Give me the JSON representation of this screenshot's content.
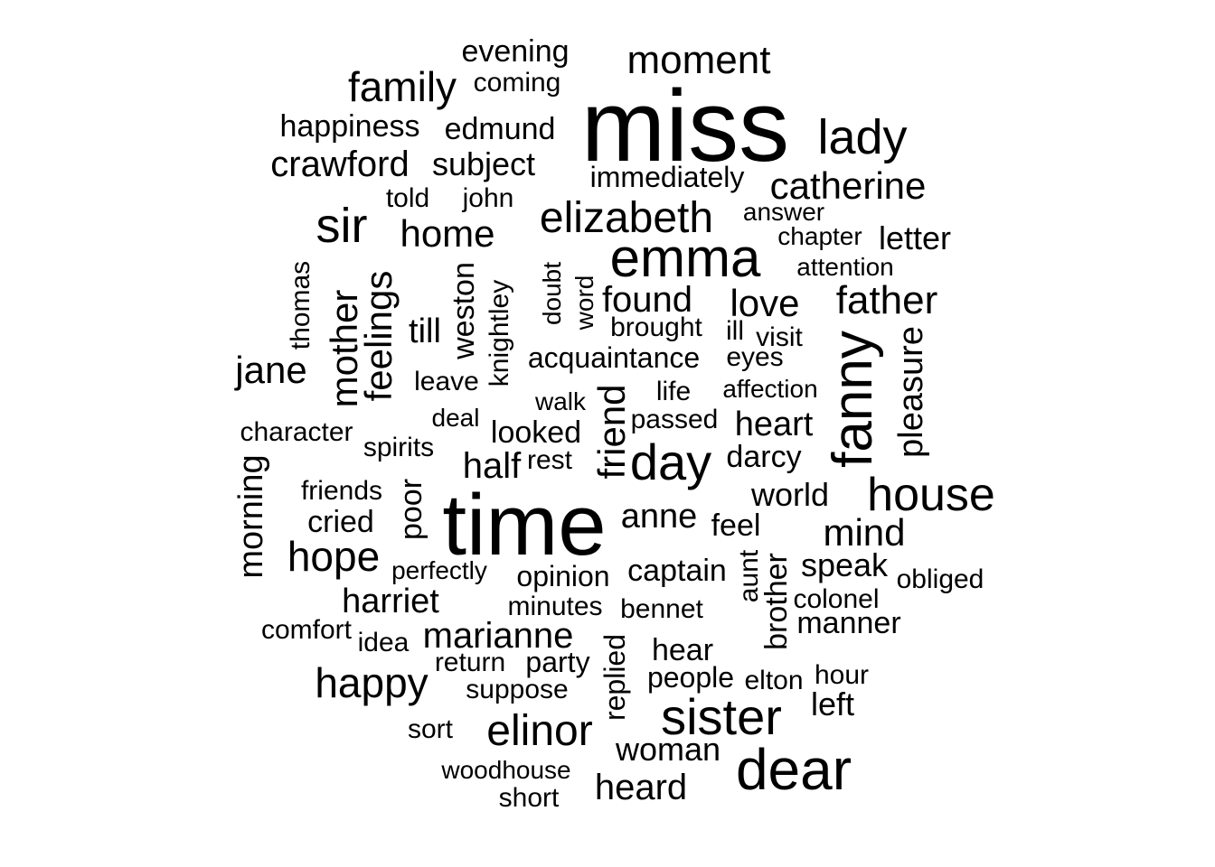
{
  "word_cloud": {
    "text_color": "#000000",
    "background": "#ffffff",
    "words": [
      {
        "text": "miss",
        "orientation": "horizontal"
      },
      {
        "text": "time",
        "orientation": "horizontal"
      },
      {
        "text": "dear",
        "orientation": "horizontal"
      },
      {
        "text": "emma",
        "orientation": "horizontal"
      },
      {
        "text": "fanny",
        "orientation": "vertical"
      },
      {
        "text": "sister",
        "orientation": "horizontal"
      },
      {
        "text": "day",
        "orientation": "horizontal"
      },
      {
        "text": "house",
        "orientation": "horizontal"
      },
      {
        "text": "lady",
        "orientation": "horizontal"
      },
      {
        "text": "elizabeth",
        "orientation": "horizontal"
      },
      {
        "text": "sir",
        "orientation": "horizontal"
      },
      {
        "text": "elinor",
        "orientation": "horizontal"
      },
      {
        "text": "hope",
        "orientation": "horizontal"
      },
      {
        "text": "happy",
        "orientation": "horizontal"
      },
      {
        "text": "father",
        "orientation": "horizontal"
      },
      {
        "text": "family",
        "orientation": "horizontal"
      },
      {
        "text": "catherine",
        "orientation": "horizontal"
      },
      {
        "text": "moment",
        "orientation": "horizontal"
      },
      {
        "text": "mind",
        "orientation": "horizontal"
      },
      {
        "text": "home",
        "orientation": "horizontal"
      },
      {
        "text": "love",
        "orientation": "horizontal"
      },
      {
        "text": "heard",
        "orientation": "horizontal"
      },
      {
        "text": "mother",
        "orientation": "vertical"
      },
      {
        "text": "feelings",
        "orientation": "vertical"
      },
      {
        "text": "friend",
        "orientation": "vertical"
      },
      {
        "text": "jane",
        "orientation": "horizontal"
      },
      {
        "text": "marianne",
        "orientation": "horizontal"
      },
      {
        "text": "crawford",
        "orientation": "horizontal"
      },
      {
        "text": "found",
        "orientation": "horizontal"
      },
      {
        "text": "pleasure",
        "orientation": "vertical"
      },
      {
        "text": "morning",
        "orientation": "vertical"
      },
      {
        "text": "anne",
        "orientation": "horizontal"
      },
      {
        "text": "heart",
        "orientation": "horizontal"
      },
      {
        "text": "harriet",
        "orientation": "horizontal"
      },
      {
        "text": "till",
        "orientation": "horizontal"
      },
      {
        "text": "half",
        "orientation": "horizontal"
      },
      {
        "text": "world",
        "orientation": "horizontal"
      },
      {
        "text": "woman",
        "orientation": "horizontal"
      },
      {
        "text": "letter",
        "orientation": "horizontal"
      },
      {
        "text": "subject",
        "orientation": "horizontal"
      },
      {
        "text": "speak",
        "orientation": "horizontal"
      },
      {
        "text": "evening",
        "orientation": "horizontal"
      },
      {
        "text": "happiness",
        "orientation": "horizontal"
      },
      {
        "text": "edmund",
        "orientation": "horizontal"
      },
      {
        "text": "immediately",
        "orientation": "horizontal"
      },
      {
        "text": "looked",
        "orientation": "horizontal"
      },
      {
        "text": "darcy",
        "orientation": "horizontal"
      },
      {
        "text": "manner",
        "orientation": "horizontal"
      },
      {
        "text": "brother",
        "orientation": "vertical"
      },
      {
        "text": "feel",
        "orientation": "horizontal"
      },
      {
        "text": "captain",
        "orientation": "horizontal"
      },
      {
        "text": "hear",
        "orientation": "horizontal"
      },
      {
        "text": "left",
        "orientation": "horizontal"
      },
      {
        "text": "cried",
        "orientation": "horizontal"
      },
      {
        "text": "weston",
        "orientation": "vertical"
      },
      {
        "text": "acquaintance",
        "orientation": "horizontal"
      },
      {
        "text": "opinion",
        "orientation": "horizontal"
      },
      {
        "text": "people",
        "orientation": "horizontal"
      },
      {
        "text": "party",
        "orientation": "horizontal"
      },
      {
        "text": "poor",
        "orientation": "vertical"
      },
      {
        "text": "replied",
        "orientation": "vertical"
      },
      {
        "text": "coming",
        "orientation": "horizontal"
      },
      {
        "text": "told",
        "orientation": "horizontal"
      },
      {
        "text": "john",
        "orientation": "horizontal"
      },
      {
        "text": "answer",
        "orientation": "horizontal"
      },
      {
        "text": "chapter",
        "orientation": "horizontal"
      },
      {
        "text": "attention",
        "orientation": "horizontal"
      },
      {
        "text": "thomas",
        "orientation": "vertical"
      },
      {
        "text": "knightley",
        "orientation": "vertical"
      },
      {
        "text": "doubt",
        "orientation": "vertical"
      },
      {
        "text": "word",
        "orientation": "vertical"
      },
      {
        "text": "brought",
        "orientation": "horizontal"
      },
      {
        "text": "ill",
        "orientation": "horizontal"
      },
      {
        "text": "visit",
        "orientation": "horizontal"
      },
      {
        "text": "eyes",
        "orientation": "horizontal"
      },
      {
        "text": "leave",
        "orientation": "horizontal"
      },
      {
        "text": "life",
        "orientation": "horizontal"
      },
      {
        "text": "affection",
        "orientation": "horizontal"
      },
      {
        "text": "walk",
        "orientation": "horizontal"
      },
      {
        "text": "deal",
        "orientation": "horizontal"
      },
      {
        "text": "passed",
        "orientation": "horizontal"
      },
      {
        "text": "character",
        "orientation": "horizontal"
      },
      {
        "text": "spirits",
        "orientation": "horizontal"
      },
      {
        "text": "rest",
        "orientation": "horizontal"
      },
      {
        "text": "friends",
        "orientation": "horizontal"
      },
      {
        "text": "perfectly",
        "orientation": "horizontal"
      },
      {
        "text": "aunt",
        "orientation": "vertical"
      },
      {
        "text": "obliged",
        "orientation": "horizontal"
      },
      {
        "text": "colonel",
        "orientation": "horizontal"
      },
      {
        "text": "minutes",
        "orientation": "horizontal"
      },
      {
        "text": "bennet",
        "orientation": "horizontal"
      },
      {
        "text": "comfort",
        "orientation": "horizontal"
      },
      {
        "text": "idea",
        "orientation": "horizontal"
      },
      {
        "text": "return",
        "orientation": "horizontal"
      },
      {
        "text": "suppose",
        "orientation": "horizontal"
      },
      {
        "text": "elton",
        "orientation": "horizontal"
      },
      {
        "text": "hour",
        "orientation": "horizontal"
      },
      {
        "text": "sort",
        "orientation": "horizontal"
      },
      {
        "text": "woodhouse",
        "orientation": "horizontal"
      },
      {
        "text": "short",
        "orientation": "horizontal"
      }
    ]
  }
}
